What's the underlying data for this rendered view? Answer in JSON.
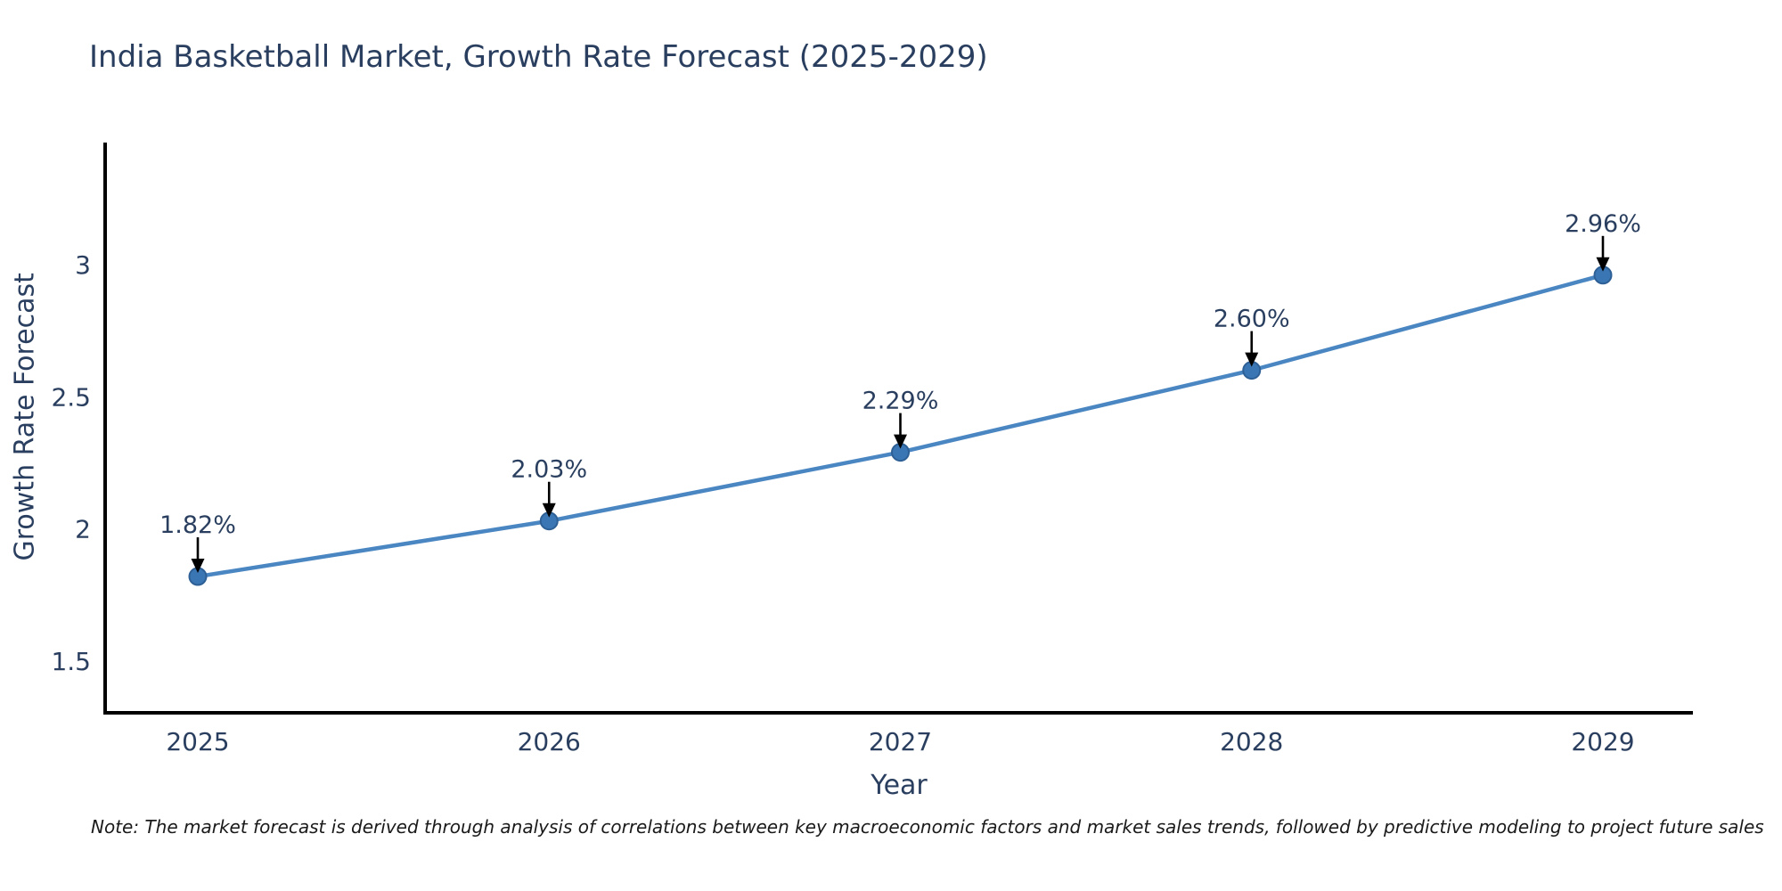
{
  "page": {
    "title": "India Basketball Market, Growth Rate Forecast (2025-2029)",
    "note": "Note: The market forecast is derived through analysis of correlations between key macroeconomic factors and market sales trends, followed by predictive modeling to project future sales"
  },
  "chart_data": {
    "type": "line",
    "title": "India Basketball Market, Growth Rate Forecast (2025-2029)",
    "xlabel": "Year",
    "ylabel": "Growth Rate Forecast",
    "categories": [
      "2025",
      "2026",
      "2027",
      "2028",
      "2029"
    ],
    "series": [
      {
        "name": "Growth Rate Forecast",
        "values": [
          1.82,
          2.03,
          2.29,
          2.6,
          2.96
        ]
      }
    ],
    "data_labels": [
      "1.82%",
      "2.03%",
      "2.29%",
      "2.60%",
      "2.96%"
    ],
    "y_ticks": [
      1.5,
      2,
      2.5,
      3
    ],
    "y_tick_labels": [
      "1.5",
      "2",
      "2.5",
      "3"
    ],
    "ylim": [
      1.3,
      3.46
    ],
    "grid": false,
    "legend_position": "none",
    "marker_style": "circle-with-down-arrow-annotation",
    "colors": {
      "line": "#4a86c2",
      "marker_fill": "#3a76b4",
      "marker_edge": "#2e6096",
      "axis_line": "#000000",
      "tick_text": "#2a3f5f",
      "data_label_text": "#2a3f5f",
      "title_text": "#2a3f5f",
      "note_text": "#1a1a1a",
      "arrow": "#000000",
      "background": "#ffffff"
    }
  }
}
